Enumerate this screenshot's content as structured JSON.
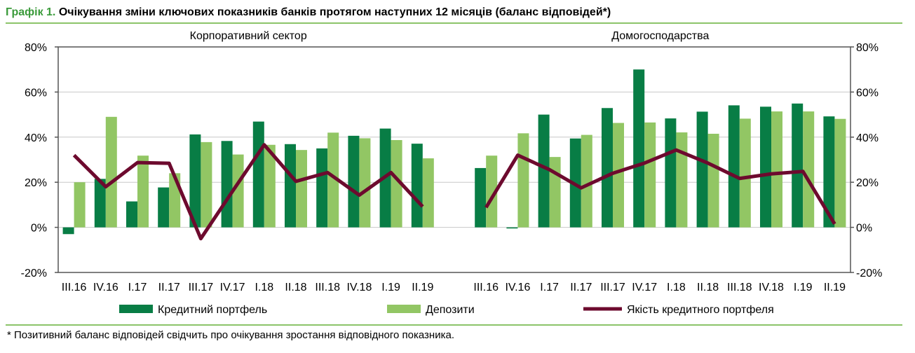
{
  "title": {
    "number": "Графік 1.",
    "text": "Очікування зміни ключових показників банків протягом наступних 12 місяців (баланс відповідей*)"
  },
  "footnote": "* Позитивний баланс відповідей свідчить про очікування зростання відповідного показника.",
  "colors": {
    "credit": "#087d45",
    "deposits": "#92c664",
    "quality": "#6d0a2e",
    "rule": "#8cc46a",
    "title_number": "#3a9a3a"
  },
  "chart_data": {
    "type": "bar+line",
    "ylim": [
      -20,
      80
    ],
    "yticks": [
      "-20%",
      "0%",
      "20%",
      "40%",
      "60%",
      "80%"
    ],
    "ytick_values": [
      -20,
      0,
      20,
      40,
      60,
      80
    ],
    "grid": true,
    "legend_position": "bottom",
    "panels": [
      {
        "title": "Корпоративний сектор",
        "categories": [
          "III.16",
          "IV.16",
          "I.17",
          "II.17",
          "III.17",
          "IV.17",
          "I.18",
          "II.18",
          "III.18",
          "IV.18",
          "I.19",
          "II.19"
        ],
        "series": [
          {
            "name": "Кредитний портфель",
            "kind": "bar",
            "values": [
              -3,
              21.5,
              11.5,
              17.7,
              41.2,
              38.3,
              46.9,
              36.9,
              35,
              40.6,
              43.8,
              37.1
            ]
          },
          {
            "name": "Депозити",
            "kind": "bar",
            "values": [
              20,
              49,
              31.8,
              24,
              37.8,
              32.3,
              36.6,
              34.3,
              42,
              39.5,
              38.7,
              30.6
            ]
          },
          {
            "name": "Якість кредитного портфеля",
            "kind": "line",
            "values": [
              32,
              18,
              28.7,
              28.4,
              -5,
              16,
              36.6,
              20.4,
              24.3,
              14.3,
              24.3,
              9.2
            ]
          }
        ]
      },
      {
        "title": "Домогосподарства",
        "categories": [
          "III.16",
          "IV.16",
          "I.17",
          "II.17",
          "III.17",
          "IV.17",
          "I.18",
          "II.18",
          "III.18",
          "IV.18",
          "I.19",
          "II.19"
        ],
        "series": [
          {
            "name": "Кредитний портфель",
            "kind": "bar",
            "values": [
              26.3,
              -0.5,
              50,
              39.4,
              52.9,
              70,
              48.3,
              51.3,
              54.1,
              53.5,
              54.9,
              49.2
            ]
          },
          {
            "name": "Депозити",
            "kind": "bar",
            "values": [
              31.8,
              41.7,
              31.2,
              41,
              46.3,
              46.5,
              42.1,
              41.5,
              48.2,
              51.4,
              51.4,
              48.1
            ]
          },
          {
            "name": "Якість кредитного портфеля",
            "kind": "line",
            "values": [
              8.8,
              32,
              25.6,
              17.5,
              24,
              28.5,
              34.3,
              28.5,
              21.7,
              23.7,
              24.8,
              1.5
            ]
          }
        ]
      }
    ],
    "legend": [
      "Кредитний портфель",
      "Депозити",
      "Якість кредитного портфеля"
    ]
  }
}
